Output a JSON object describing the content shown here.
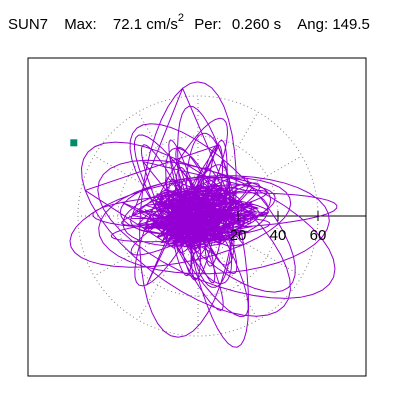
{
  "header": {
    "station": "SUN7",
    "max_label": "Max:",
    "max_value": "72.1",
    "max_unit": "cm/s",
    "max_unit_exp": "2",
    "per_label": "Per:",
    "per_value": "0.260 s",
    "ang_label": "Ang:",
    "ang_value": "149.5"
  },
  "chart_data": {
    "type": "scatter",
    "title": "",
    "xlabel": "",
    "ylabel": "",
    "radial_ticks": [
      20,
      40,
      60
    ],
    "radial_rings": [
      20,
      40,
      60
    ],
    "rlim": [
      0,
      72.1
    ],
    "azimuth_gridlines_deg": [
      0,
      30,
      60,
      90,
      120,
      150,
      180,
      210,
      240,
      270,
      300,
      330
    ],
    "grid": true,
    "series": [
      {
        "color": "#9400d3",
        "max_amplitude": 72.1,
        "peak_angle_deg": 149.5,
        "peak_marker_color": "#008b6b"
      }
    ]
  },
  "colors": {
    "trace": "#9400d3",
    "marker": "#008b6b",
    "grid": "#808080",
    "axis": "#000000"
  }
}
